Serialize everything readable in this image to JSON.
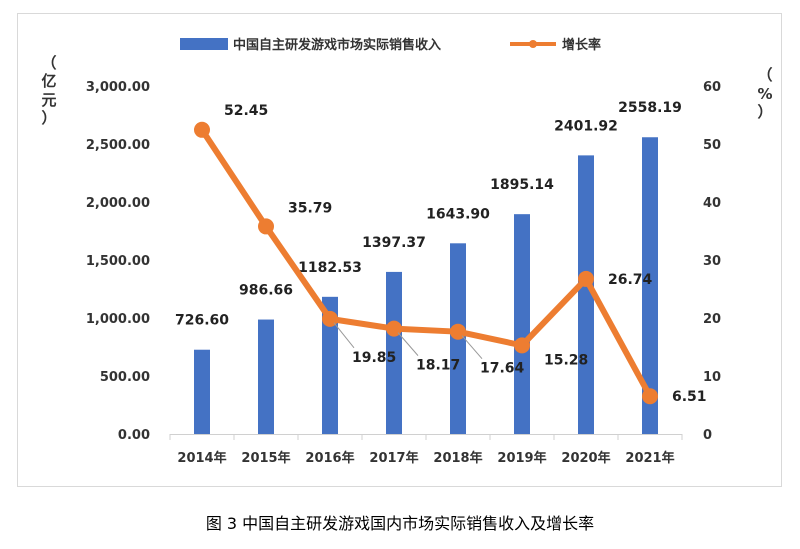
{
  "caption": "图 3 中国自主研发游戏国内市场实际销售收入及增长率",
  "chart_data": {
    "type": "bar",
    "categories": [
      "2014年",
      "2015年",
      "2016年",
      "2017年",
      "2018年",
      "2019年",
      "2020年",
      "2021年"
    ],
    "series": [
      {
        "name": "中国自主研发游戏市场实际销售收入",
        "type": "bar",
        "axis": "left",
        "color": "#4472C4",
        "values": [
          726.6,
          986.66,
          1182.53,
          1397.37,
          1643.9,
          1895.14,
          2401.92,
          2558.19
        ],
        "labels": [
          "726.60",
          "986.66",
          "1182.53",
          "1397.37",
          "1643.90",
          "1895.14",
          "2401.92",
          "2558.19"
        ]
      },
      {
        "name": "增长率",
        "type": "line",
        "axis": "right",
        "color": "#ED7D31",
        "values": [
          52.45,
          35.79,
          19.85,
          18.17,
          17.64,
          15.28,
          26.74,
          6.51
        ],
        "labels": [
          "52.45",
          "35.79",
          "19.85",
          "18.17",
          "17.64",
          "15.28",
          "26.74",
          "6.51"
        ]
      }
    ],
    "y_left": {
      "unit_label": [
        "（",
        "亿",
        "元",
        "）"
      ],
      "lim": [
        0,
        3000
      ],
      "ticks": [
        "0.00",
        "500.00",
        "1,000.00",
        "1,500.00",
        "2,000.00",
        "2,500.00",
        "3,000.00"
      ]
    },
    "y_right": {
      "unit_label": [
        "（",
        "%",
        "）"
      ],
      "lim": [
        0,
        60
      ],
      "ticks": [
        "0",
        "10",
        "20",
        "30",
        "40",
        "50",
        "60"
      ]
    },
    "legend_position": "top-center",
    "grid": false
  }
}
